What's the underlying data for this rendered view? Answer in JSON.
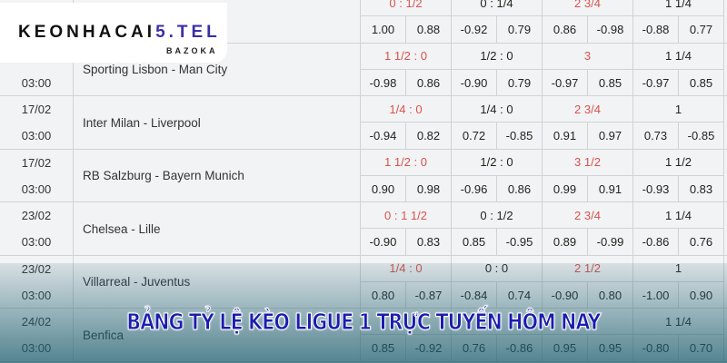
{
  "logo": {
    "brand_dark": "KEONHACAI",
    "brand_accent": "5.TEL",
    "sub": "BAZOKA"
  },
  "banner": "BẢNG TỶ LỆ KÈO LIGUE 1 TRỰC TUYẾN HÔM NAY",
  "colors": {
    "handicap": "#d9534f",
    "banner": "#1b1cae"
  },
  "rows": [
    {
      "date": "",
      "time": "",
      "match": "",
      "h": [
        "0 : 1/2",
        "0 : 1/4",
        "2 3/4",
        "1 1/4"
      ],
      "odds": [
        "1.00",
        "0.88",
        "-0.92",
        "0.79",
        "0.86",
        "-0.98",
        "-0.88",
        "0.77"
      ]
    },
    {
      "date": "",
      "time": "03:00",
      "match": "Sporting Lisbon - Man City",
      "h": [
        "1 1/2 : 0",
        "1/2 : 0",
        "3",
        "1 1/4"
      ],
      "odds": [
        "-0.98",
        "0.86",
        "-0.90",
        "0.79",
        "-0.97",
        "0.85",
        "-0.97",
        "0.85"
      ]
    },
    {
      "date": "17/02",
      "time": "03:00",
      "match": "Inter Milan - Liverpool",
      "h": [
        "1/4 : 0",
        "1/4 : 0",
        "2 3/4",
        "1"
      ],
      "odds": [
        "-0.94",
        "0.82",
        "0.72",
        "-0.85",
        "0.91",
        "0.97",
        "0.73",
        "-0.85"
      ]
    },
    {
      "date": "17/02",
      "time": "03:00",
      "match": "RB Salzburg - Bayern Munich",
      "h": [
        "1 1/2 : 0",
        "1/2 : 0",
        "3 1/2",
        "1 1/2"
      ],
      "odds": [
        "0.90",
        "0.98",
        "-0.96",
        "0.86",
        "0.99",
        "0.91",
        "-0.93",
        "0.83"
      ]
    },
    {
      "date": "23/02",
      "time": "03:00",
      "match": "Chelsea - Lille",
      "h": [
        "0 : 1 1/2",
        "0 : 1/2",
        "2 3/4",
        "1 1/4"
      ],
      "odds": [
        "-0.90",
        "0.83",
        "0.85",
        "-0.95",
        "0.89",
        "-0.99",
        "-0.86",
        "0.76"
      ]
    },
    {
      "date": "23/02",
      "time": "03:00",
      "match": "Villarreal - Juventus",
      "h": [
        "1/4 : 0",
        "0 : 0",
        "2 1/2",
        "1"
      ],
      "odds": [
        "0.80",
        "-0.87",
        "-0.84",
        "0.74",
        "-0.90",
        "0.80",
        "-1.00",
        "0.90"
      ]
    },
    {
      "date": "24/02",
      "time": "03:00",
      "match": "Benfica",
      "h": [
        "",
        "",
        "",
        "1 1/4"
      ],
      "odds": [
        "0.85",
        "-0.92",
        "0.76",
        "-0.86",
        "0.95",
        "0.95",
        "-0.80",
        "0.70"
      ]
    }
  ]
}
